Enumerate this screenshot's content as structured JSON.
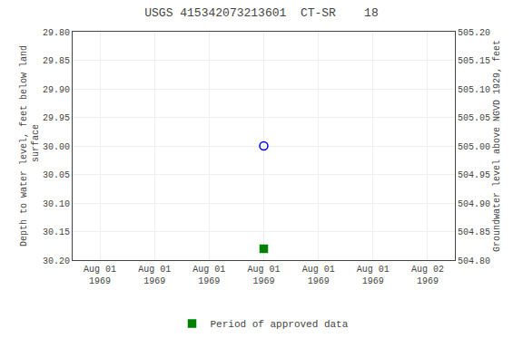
{
  "chart_data": {
    "type": "scatter",
    "title": "USGS 415342073213601  CT-SR    18",
    "ylabel": "Depth to water level, feet below land\n surface",
    "y2label": "Groundwater level above NGVD 1929, feet",
    "categories": [
      "Aug 01\n1969",
      "Aug 01\n1969",
      "Aug 01\n1969",
      "Aug 01\n1969",
      "Aug 01\n1969",
      "Aug 01\n1969",
      "Aug 02\n1969"
    ],
    "series": [
      {
        "color": "#0000ff",
        "marker": "circle-open",
        "values": [
          null,
          null,
          null,
          30.0,
          null,
          null,
          null
        ]
      },
      {
        "name": "Period of approved data",
        "color": "#008000",
        "marker": "square",
        "values": [
          null,
          null,
          null,
          30.18,
          null,
          null,
          null
        ]
      }
    ],
    "ylim": [
      30.2,
      29.8
    ],
    "yticks": [
      {
        "value": 29.8,
        "label": "29.80"
      },
      29.85,
      {
        "value": 29.9,
        "label": "29.90"
      },
      29.95,
      {
        "value": 30.0,
        "label": "30.00"
      },
      30.05,
      {
        "value": 30.1,
        "label": "30.10"
      },
      30.15,
      {
        "value": 30.2,
        "label": "30.20"
      }
    ],
    "y2lim": [
      504.8,
      505.2
    ],
    "y2ticks": [
      {
        "value": 505.2,
        "label": "505.20"
      },
      505.15,
      {
        "value": 505.1,
        "label": "505.10"
      },
      505.05,
      {
        "value": 505.0,
        "label": "505.00"
      },
      504.95,
      {
        "value": 504.9,
        "label": "504.90"
      },
      504.85,
      {
        "value": 504.8,
        "label": "504.80"
      }
    ],
    "grid": true,
    "legend": "bottom"
  }
}
